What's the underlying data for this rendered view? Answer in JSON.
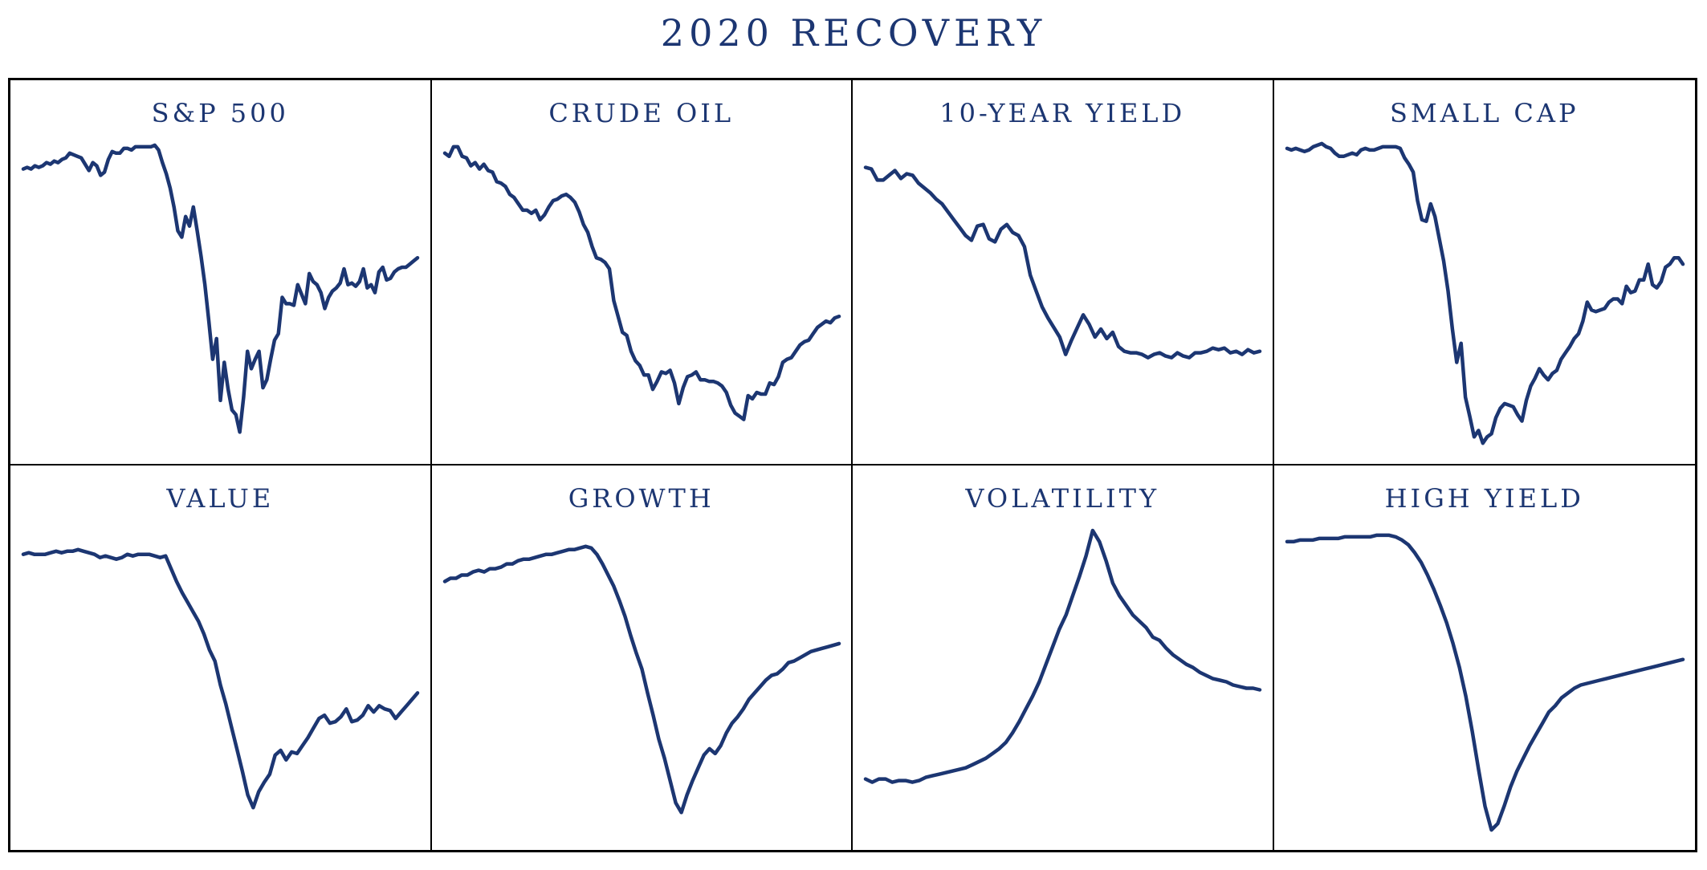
{
  "title": "2020 RECOVERY",
  "colors": {
    "line": "#1c3672",
    "text": "#1c3672",
    "border": "#000000"
  },
  "chart_data": [
    {
      "type": "line",
      "title": "S&P 500",
      "grid": false,
      "values": [
        72,
        73,
        72,
        74,
        73,
        74,
        76,
        75,
        77,
        76,
        78,
        79,
        82,
        81,
        80,
        79,
        75,
        71,
        76,
        74,
        68,
        70,
        78,
        83,
        82,
        82,
        85,
        85,
        84,
        86,
        86,
        86,
        86,
        86,
        87,
        84,
        76,
        69,
        60,
        48,
        33,
        29,
        42,
        36,
        48,
        33,
        17,
        -1,
        -24,
        -48,
        -35,
        -74,
        -50,
        -67,
        -80,
        -83,
        -94,
        -72,
        -43,
        -54,
        -48,
        -43,
        -66,
        -61,
        -48,
        -36,
        -32,
        -9,
        -13,
        -13,
        -14,
        -1,
        -7,
        -13,
        6,
        1,
        -1,
        -6,
        -16,
        -9,
        -5,
        -3,
        0,
        9,
        -1,
        0,
        -2,
        1,
        9,
        -3,
        -1,
        -6,
        7,
        10,
        2,
        3,
        7,
        9,
        10,
        10,
        12,
        14,
        16
      ],
      "ylim": [
        -110,
        90
      ]
    },
    {
      "type": "line",
      "title": "CRUDE OIL",
      "grid": false,
      "values": [
        82,
        80,
        86,
        86,
        80,
        79,
        74,
        76,
        72,
        75,
        71,
        70,
        64,
        63,
        61,
        56,
        54,
        50,
        46,
        46,
        44,
        46,
        40,
        43,
        48,
        52,
        53,
        55,
        56,
        54,
        51,
        45,
        37,
        32,
        23,
        16,
        15,
        13,
        9,
        -11,
        -21,
        -31,
        -33,
        -43,
        -49,
        -52,
        -58,
        -58,
        -67,
        -62,
        -56,
        -57,
        -55,
        -63,
        -76,
        -66,
        -59,
        -58,
        -56,
        -61,
        -61,
        -62,
        -62,
        -63,
        -65,
        -69,
        -77,
        -82,
        -84,
        -86,
        -71,
        -73,
        -69,
        -70,
        -70,
        -63,
        -64,
        -59,
        -50,
        -48,
        -47,
        -43,
        -39,
        -37,
        -36,
        -32,
        -28,
        -26,
        -24,
        -25,
        -22,
        -21
      ],
      "ylim": [
        -110,
        90
      ]
    },
    {
      "type": "line",
      "title": "10-YEAR YIELD",
      "grid": false,
      "values": [
        73,
        72,
        65,
        65,
        68,
        71,
        66,
        69,
        68,
        63,
        60,
        57,
        53,
        50,
        45,
        40,
        35,
        30,
        27,
        36,
        37,
        28,
        26,
        34,
        37,
        32,
        30,
        23,
        5,
        -5,
        -15,
        -22,
        -28,
        -34,
        -45,
        -36,
        -28,
        -20,
        -26,
        -34,
        -29,
        -35,
        -31,
        -40,
        -43,
        -44,
        -44,
        -45,
        -47,
        -45,
        -44,
        -46,
        -47,
        -44,
        -46,
        -47,
        -44,
        -44,
        -43,
        -41,
        -42,
        -41,
        -44,
        -43,
        -45,
        -42,
        -44,
        -43
      ],
      "ylim": [
        -110,
        90
      ]
    },
    {
      "type": "line",
      "title": "SMALL CAP",
      "grid": false,
      "values": [
        85,
        84,
        85,
        84,
        83,
        84,
        86,
        87,
        88,
        86,
        85,
        82,
        80,
        80,
        81,
        82,
        81,
        84,
        85,
        84,
        84,
        85,
        86,
        86,
        86,
        86,
        85,
        79,
        75,
        70,
        52,
        40,
        39,
        50,
        42,
        28,
        14,
        -5,
        -29,
        -50,
        -38,
        -72,
        -84,
        -97,
        -93,
        -101,
        -97,
        -95,
        -85,
        -79,
        -76,
        -77,
        -78,
        -83,
        -87,
        -74,
        -65,
        -60,
        -54,
        -58,
        -61,
        -57,
        -55,
        -48,
        -44,
        -40,
        -35,
        -32,
        -24,
        -12,
        -17,
        -18,
        -17,
        -16,
        -12,
        -10,
        -10,
        -13,
        -2,
        -6,
        -5,
        2,
        2,
        12,
        -1,
        -3,
        1,
        10,
        12,
        16,
        16,
        12
      ],
      "ylim": [
        -110,
        90
      ]
    },
    {
      "type": "line",
      "title": "VALUE",
      "grid": false,
      "values": [
        72,
        73,
        72,
        72,
        72,
        73,
        74,
        73,
        74,
        74,
        75,
        74,
        73,
        72,
        70,
        71,
        70,
        69,
        70,
        72,
        71,
        72,
        72,
        72,
        71,
        70,
        71,
        63,
        55,
        48,
        42,
        36,
        30,
        22,
        12,
        5,
        -10,
        -22,
        -36,
        -50,
        -64,
        -79,
        -87,
        -77,
        -71,
        -66,
        -54,
        -51,
        -57,
        -52,
        -53,
        -48,
        -43,
        -37,
        -31,
        -29,
        -34,
        -33,
        -30,
        -25,
        -33,
        -32,
        -29,
        -23,
        -27,
        -23,
        -25,
        -26,
        -31,
        -27,
        -23,
        -19,
        -15
      ],
      "ylim": [
        -110,
        90
      ]
    },
    {
      "type": "line",
      "title": "GROWTH",
      "grid": false,
      "values": [
        55,
        57,
        57,
        59,
        59,
        61,
        62,
        61,
        63,
        63,
        64,
        66,
        66,
        68,
        69,
        69,
        70,
        71,
        72,
        72,
        73,
        74,
        75,
        75,
        76,
        77,
        76,
        72,
        66,
        59,
        52,
        43,
        33,
        21,
        10,
        0,
        -15,
        -29,
        -44,
        -56,
        -70,
        -84,
        -90,
        -79,
        -70,
        -62,
        -54,
        -50,
        -53,
        -48,
        -40,
        -34,
        -30,
        -25,
        -19,
        -15,
        -11,
        -7,
        -4,
        -3,
        0,
        4,
        5,
        7,
        9,
        11,
        12,
        13,
        14,
        15,
        16
      ],
      "ylim": [
        -110,
        90
      ]
    },
    {
      "type": "line",
      "title": "VOLATILITY",
      "grid": false,
      "values": [
        -69,
        -71,
        -69,
        -69,
        -71,
        -70,
        -70,
        -71,
        -70,
        -68,
        -67,
        -66,
        -65,
        -64,
        -63,
        -62,
        -60,
        -58,
        -56,
        -53,
        -50,
        -46,
        -40,
        -33,
        -25,
        -17,
        -8,
        3,
        14,
        25,
        34,
        46,
        58,
        71,
        87,
        80,
        68,
        54,
        46,
        40,
        34,
        30,
        26,
        20,
        18,
        13,
        9,
        6,
        3,
        1,
        -2,
        -4,
        -6,
        -7,
        -8,
        -10,
        -11,
        -12,
        -12,
        -13
      ],
      "ylim": [
        -110,
        90
      ]
    },
    {
      "type": "line",
      "title": "HIGH YIELD",
      "grid": false,
      "values": [
        80,
        80,
        81,
        81,
        81,
        82,
        82,
        82,
        82,
        83,
        83,
        83,
        83,
        83,
        84,
        84,
        84,
        83,
        81,
        78,
        73,
        67,
        59,
        50,
        40,
        29,
        16,
        1,
        -17,
        -39,
        -63,
        -86,
        -101,
        -97,
        -86,
        -74,
        -64,
        -56,
        -48,
        -41,
        -34,
        -27,
        -23,
        -18,
        -15,
        -12,
        -10,
        -9,
        -8,
        -7,
        -6,
        -5,
        -4,
        -3,
        -2,
        -1,
        0,
        1,
        2,
        3,
        4,
        5,
        6
      ],
      "ylim": [
        -110,
        90
      ]
    }
  ]
}
